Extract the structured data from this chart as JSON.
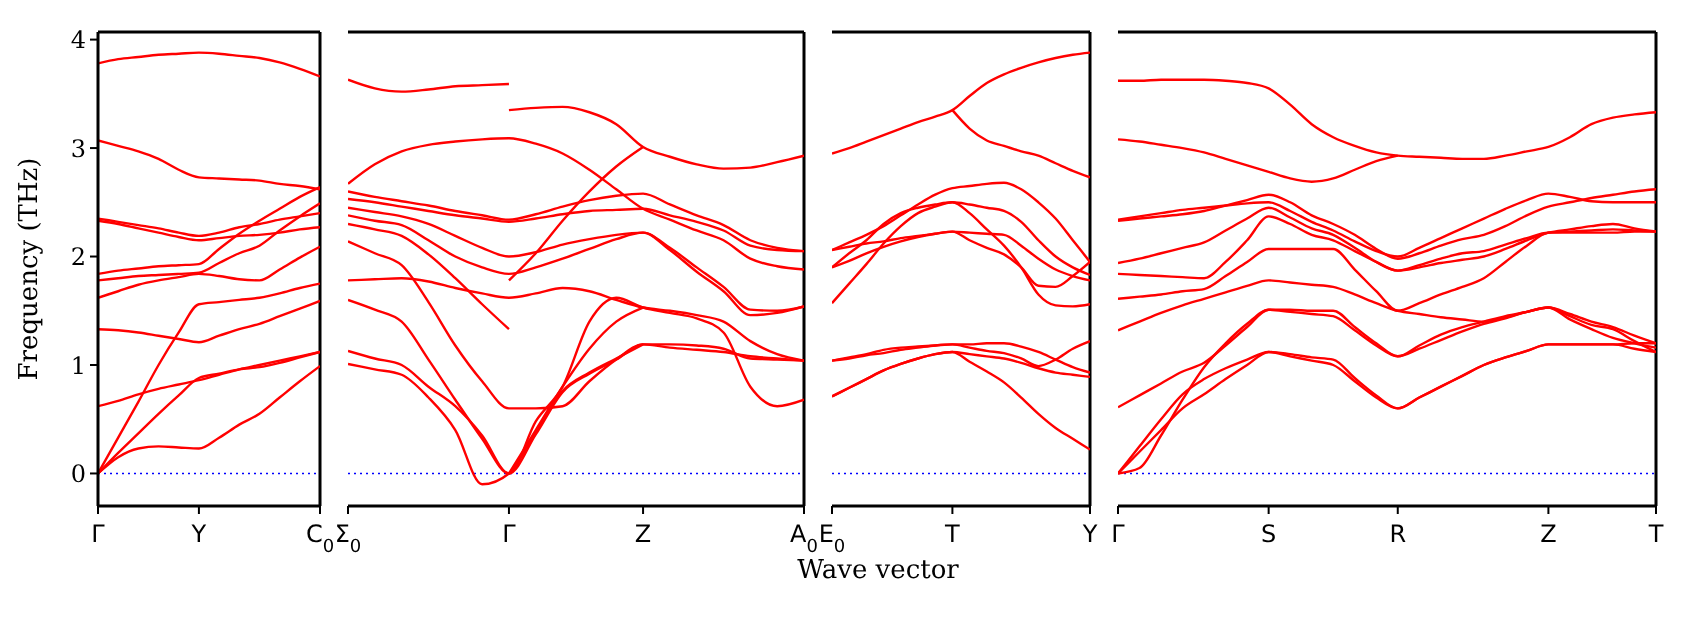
{
  "chart_data": [
    {
      "type": "line",
      "ylabel": "Frequency (THz)",
      "categories": [
        "Γ",
        null,
        null,
        null,
        null,
        "Y",
        null,
        null,
        null,
        null,
        null,
        "C$_{0}$"
      ],
      "ylim": [
        -0.3,
        4.07
      ],
      "yticks": [
        0,
        1,
        2,
        3,
        4
      ],
      "grid": false,
      "legend": false,
      "ref_lines": [
        {
          "axis": "y",
          "value": 0,
          "color": "#0000ff",
          "line_style": "dotted"
        }
      ],
      "series": [
        {
          "color": "#ff0000",
          "values": [
            3.78,
            3.82,
            3.84,
            3.86,
            3.87,
            3.88,
            3.87,
            3.85,
            3.83,
            3.79,
            3.73,
            3.66
          ]
        },
        {
          "color": "#ff0000",
          "values": [
            3.07,
            3.02,
            2.97,
            2.9,
            2.8,
            2.73,
            2.72,
            2.71,
            2.7,
            2.67,
            2.65,
            2.62
          ]
        },
        {
          "color": "#ff0000",
          "values": [
            2.35,
            2.32,
            2.29,
            2.26,
            2.22,
            2.19,
            2.22,
            2.27,
            2.3,
            2.34,
            2.37,
            2.4
          ]
        },
        {
          "color": "#ff0000",
          "values": [
            2.33,
            2.3,
            2.26,
            2.22,
            2.18,
            2.15,
            2.17,
            2.19,
            2.2,
            2.22,
            2.25,
            2.27
          ]
        },
        {
          "color": "#ff0000",
          "values": [
            1.84,
            1.87,
            1.89,
            1.91,
            1.92,
            1.93,
            2.07,
            2.21,
            2.33,
            2.44,
            2.55,
            2.64
          ]
        },
        {
          "color": "#ff0000",
          "values": [
            1.78,
            1.8,
            1.82,
            1.83,
            1.84,
            1.85,
            1.94,
            2.03,
            2.1,
            2.24,
            2.37,
            2.49
          ]
        },
        {
          "color": "#ff0000",
          "values": [
            1.62,
            1.68,
            1.74,
            1.78,
            1.81,
            1.84,
            1.82,
            1.79,
            1.78,
            1.88,
            1.99,
            2.09
          ]
        },
        {
          "color": "#ff0000",
          "values": [
            1.33,
            1.32,
            1.3,
            1.27,
            1.24,
            1.21,
            1.27,
            1.33,
            1.38,
            1.45,
            1.52,
            1.59
          ]
        },
        {
          "color": "#ff0000",
          "values": [
            0.62,
            0.67,
            0.73,
            0.78,
            0.82,
            0.86,
            0.91,
            0.96,
            1.0,
            1.04,
            1.08,
            1.12
          ]
        },
        {
          "color": "#ff0000",
          "values": [
            0,
            0.33,
            0.66,
            1.0,
            1.3,
            1.56,
            1.58,
            1.6,
            1.62,
            1.66,
            1.71,
            1.75
          ]
        },
        {
          "color": "#ff0000",
          "values": [
            0,
            0.19,
            0.37,
            0.55,
            0.72,
            0.88,
            0.92,
            0.96,
            0.98,
            1.02,
            1.07,
            1.12
          ]
        },
        {
          "color": "#ff0000",
          "values": [
            0,
            0.15,
            0.23,
            0.25,
            0.24,
            0.23,
            0.33,
            0.45,
            0.55,
            0.7,
            0.85,
            0.99
          ]
        }
      ]
    },
    {
      "type": "line",
      "xlabel": "Wave vector",
      "categories": [
        "Σ$_{0}$",
        null,
        null,
        null,
        null,
        null,
        "Γ",
        null,
        null,
        null,
        null,
        "Z",
        null,
        null,
        null,
        null,
        null,
        "A$_{0}$"
      ],
      "ylim": [
        -0.3,
        4.07
      ],
      "yticks": [
        0,
        1,
        2,
        3,
        4
      ],
      "tick_labels": "x",
      "grid": false,
      "legend": false,
      "ref_lines": [
        {
          "axis": "y",
          "value": 0,
          "color": "#0000ff",
          "line_style": "dotted"
        }
      ],
      "series": [
        {
          "color": "#ff0000",
          "values": [
            3.63,
            3.55,
            3.52,
            3.54,
            3.57,
            3.58,
            3.59,
            null,
            null,
            null,
            null,
            null,
            null,
            null,
            null,
            null,
            null,
            null
          ]
        },
        {
          "color": "#ff0000",
          "values": [
            null,
            null,
            null,
            null,
            null,
            null,
            3.35,
            3.37,
            3.38,
            3.33,
            3.22,
            3.01,
            2.92,
            2.85,
            2.81,
            2.82,
            2.87,
            2.93
          ]
        },
        {
          "color": "#ff0000",
          "values": [
            2.67,
            2.85,
            2.97,
            3.03,
            3.06,
            3.08,
            3.09,
            3.04,
            2.95,
            2.8,
            2.62,
            2.44,
            2.34,
            2.24,
            2.15,
            1.98,
            1.91,
            1.88
          ]
        },
        {
          "color": "#ff0000",
          "values": [
            2.6,
            2.55,
            2.51,
            2.47,
            2.42,
            2.38,
            2.34,
            2.39,
            2.46,
            2.52,
            2.56,
            2.58,
            2.48,
            2.38,
            2.29,
            2.15,
            2.08,
            2.05
          ]
        },
        {
          "color": "#ff0000",
          "values": [
            2.53,
            2.5,
            2.46,
            2.42,
            2.38,
            2.35,
            2.32,
            2.35,
            2.39,
            2.42,
            2.43,
            2.44,
            2.38,
            2.32,
            2.24,
            2.1,
            2.06,
            2.05
          ]
        },
        {
          "color": "#ff0000",
          "values": [
            2.45,
            2.41,
            2.37,
            2.3,
            2.19,
            2.08,
            2.0,
            2.04,
            2.11,
            2.16,
            2.2,
            2.22,
            2.06,
            1.86,
            1.68,
            1.46,
            1.48,
            1.54
          ]
        },
        {
          "color": "#ff0000",
          "values": [
            2.38,
            2.33,
            2.29,
            2.15,
            2.0,
            1.9,
            1.84,
            1.9,
            1.98,
            2.07,
            2.16,
            2.22,
            2.08,
            1.9,
            1.72,
            1.51,
            1.5,
            1.54
          ]
        },
        {
          "color": "#ff0000",
          "values": [
            null,
            null,
            null,
            null,
            null,
            null,
            1.78,
            2.03,
            2.33,
            2.6,
            2.83,
            3.01,
            null,
            null,
            null,
            null,
            null,
            null
          ]
        },
        {
          "color": "#ff0000",
          "values": [
            2.3,
            2.25,
            2.19,
            2.02,
            1.8,
            1.56,
            1.33,
            null,
            null,
            null,
            null,
            null,
            null,
            null,
            null,
            null,
            null,
            null
          ]
        },
        {
          "color": "#ff0000",
          "values": [
            1.78,
            1.79,
            1.8,
            1.77,
            1.71,
            1.66,
            1.62,
            1.66,
            1.71,
            1.68,
            1.6,
            1.53,
            1.5,
            1.46,
            1.4,
            1.22,
            1.1,
            1.04
          ]
        },
        {
          "color": "#ff0000",
          "values": [
            2.14,
            2.03,
            1.92,
            1.58,
            1.18,
            0.85,
            0.6,
            0.6,
            0.62,
            0.85,
            1.05,
            1.19,
            1.19,
            1.18,
            1.15,
            1.06,
            1.05,
            1.04
          ]
        },
        {
          "color": "#ff0000",
          "values": [
            1.6,
            1.51,
            1.4,
            1.05,
            0.68,
            0.32,
            0,
            0.48,
            0.8,
            1.4,
            1.62,
            1.53,
            1.48,
            1.43,
            1.3,
            0.8,
            0.62,
            0.68
          ]
        },
        {
          "color": "#ff0000",
          "values": [
            1.13,
            1.06,
            1.0,
            0.8,
            0.62,
            0.35,
            0,
            0.36,
            0.75,
            0.92,
            1.05,
            1.19,
            1.16,
            1.14,
            1.12,
            1.08,
            1.06,
            1.04
          ]
        },
        {
          "color": "#ff0000",
          "values": [
            1.01,
            0.96,
            0.91,
            0.7,
            0.4,
            -0.1,
            0,
            0.38,
            0.76,
            0.93,
            1.06,
            1.19,
            null,
            null,
            null,
            null,
            null,
            null
          ]
        },
        {
          "color": "#ff0000",
          "values": [
            null,
            null,
            null,
            null,
            null,
            null,
            0,
            0.4,
            0.8,
            1.15,
            1.4,
            1.53,
            null,
            null,
            null,
            null,
            null,
            null
          ]
        }
      ]
    },
    {
      "type": "line",
      "categories": [
        "E$_{0}$",
        null,
        null,
        null,
        null,
        null,
        null,
        "T",
        null,
        null,
        null,
        null,
        null,
        null,
        null,
        "Y"
      ],
      "ylim": [
        -0.3,
        4.07
      ],
      "yticks": [
        0,
        1,
        2,
        3,
        4
      ],
      "tick_labels": "x",
      "grid": false,
      "legend": false,
      "ref_lines": [
        {
          "axis": "y",
          "value": 0,
          "color": "#0000ff",
          "line_style": "dotted"
        }
      ],
      "series": [
        {
          "color": "#ff0000",
          "values": [
            2.95,
            3.0,
            3.06,
            3.12,
            3.18,
            3.24,
            3.29,
            3.35,
            3.48,
            3.6,
            3.68,
            3.74,
            3.79,
            3.83,
            3.86,
            3.88
          ]
        },
        {
          "color": "#ff0000",
          "values": [
            null,
            null,
            null,
            null,
            null,
            null,
            null,
            3.35,
            3.18,
            3.07,
            3.02,
            2.97,
            2.93,
            2.86,
            2.79,
            2.73
          ]
        },
        {
          "color": "#ff0000",
          "values": [
            2.06,
            2.13,
            2.2,
            2.28,
            2.38,
            2.48,
            2.57,
            2.63,
            2.65,
            2.67,
            2.68,
            2.62,
            2.5,
            2.35,
            2.15,
            1.95
          ]
        },
        {
          "color": "#ff0000",
          "values": [
            1.9,
            2.03,
            2.15,
            2.3,
            2.4,
            2.45,
            2.48,
            2.5,
            2.48,
            2.45,
            2.42,
            2.32,
            2.15,
            2.0,
            1.9,
            1.83
          ]
        },
        {
          "color": "#ff0000",
          "values": [
            1.57,
            1.75,
            1.93,
            2.12,
            2.28,
            2.4,
            2.46,
            2.5,
            2.4,
            2.25,
            2.1,
            1.9,
            1.65,
            1.55,
            1.54,
            1.56
          ]
        },
        {
          "color": "#ff0000",
          "values": [
            2.06,
            2.09,
            2.12,
            2.14,
            2.17,
            2.19,
            2.21,
            2.23,
            2.22,
            2.21,
            2.2,
            2.1,
            1.98,
            1.88,
            1.82,
            1.78
          ]
        },
        {
          "color": "#ff0000",
          "values": [
            1.9,
            1.96,
            2.03,
            2.09,
            2.14,
            2.18,
            2.21,
            2.23,
            2.15,
            2.08,
            2.02,
            1.9,
            1.73,
            1.72,
            1.82,
            1.95
          ]
        },
        {
          "color": "#ff0000",
          "values": [
            1.04,
            1.07,
            1.1,
            1.14,
            1.16,
            1.17,
            1.18,
            1.19,
            1.16,
            1.13,
            1.11,
            1.06,
            0.99,
            1.05,
            1.15,
            1.22
          ]
        },
        {
          "color": "#ff0000",
          "values": [
            1.04,
            1.06,
            1.09,
            1.11,
            1.14,
            1.16,
            1.18,
            1.19,
            1.19,
            1.2,
            1.2,
            1.17,
            1.12,
            1.05,
            0.98,
            0.93
          ]
        },
        {
          "color": "#ff0000",
          "values": [
            0.71,
            0.79,
            0.87,
            0.95,
            1.01,
            1.06,
            1.1,
            1.12,
            1.1,
            1.08,
            1.06,
            1.02,
            0.97,
            0.93,
            0.91,
            0.89
          ]
        },
        {
          "color": "#ff0000",
          "values": [
            0.71,
            0.79,
            0.87,
            0.95,
            1.01,
            1.06,
            1.1,
            1.12,
            1.03,
            0.94,
            0.84,
            0.7,
            0.55,
            0.42,
            0.32,
            0.22
          ]
        }
      ]
    },
    {
      "type": "line",
      "categories": [
        "Γ",
        null,
        null,
        null,
        null,
        null,
        null,
        "S",
        null,
        null,
        null,
        null,
        null,
        "R",
        null,
        null,
        null,
        null,
        null,
        null,
        "Z",
        null,
        null,
        null,
        null,
        "T"
      ],
      "ylim": [
        -0.3,
        4.07
      ],
      "yticks": [
        0,
        1,
        2,
        3,
        4
      ],
      "tick_labels": "x",
      "grid": false,
      "legend": false,
      "ref_lines": [
        {
          "axis": "y",
          "value": 0,
          "color": "#0000ff",
          "line_style": "dotted"
        }
      ],
      "series": [
        {
          "color": "#ff0000",
          "values": [
            3.62,
            3.62,
            3.63,
            3.63,
            3.63,
            3.62,
            3.6,
            3.55,
            3.4,
            3.22,
            3.1,
            3.02,
            2.96,
            2.93,
            2.92,
            2.91,
            2.9,
            2.9,
            2.93,
            2.97,
            3.01,
            3.1,
            3.22,
            3.28,
            3.31,
            3.33
          ]
        },
        {
          "color": "#ff0000",
          "values": [
            3.08,
            3.06,
            3.03,
            3.0,
            2.96,
            2.9,
            2.84,
            2.78,
            2.72,
            2.69,
            2.72,
            2.8,
            2.88,
            2.93,
            null,
            null,
            null,
            null,
            null,
            null,
            null,
            null,
            null,
            null,
            null,
            null
          ]
        },
        {
          "color": "#ff0000",
          "values": [
            2.34,
            2.37,
            2.4,
            2.43,
            2.45,
            2.47,
            2.49,
            2.5,
            2.42,
            2.32,
            2.24,
            2.14,
            2.05,
            2.0,
            2.08,
            2.17,
            2.26,
            2.35,
            2.44,
            2.52,
            2.58,
            2.55,
            2.51,
            2.5,
            2.5,
            2.5
          ]
        },
        {
          "color": "#ff0000",
          "values": [
            2.33,
            2.35,
            2.37,
            2.39,
            2.42,
            2.47,
            2.52,
            2.57,
            2.5,
            2.38,
            2.3,
            2.2,
            2.07,
            1.98,
            2.03,
            2.1,
            2.16,
            2.2,
            2.28,
            2.38,
            2.46,
            2.5,
            2.54,
            2.57,
            2.6,
            2.62
          ]
        },
        {
          "color": "#ff0000",
          "values": [
            1.94,
            1.98,
            2.03,
            2.08,
            2.13,
            2.24,
            2.35,
            2.45,
            2.36,
            2.26,
            2.2,
            2.08,
            1.95,
            1.87,
            1.92,
            1.98,
            2.03,
            2.05,
            2.11,
            2.17,
            2.22,
            2.22,
            2.22,
            2.22,
            2.23,
            2.23
          ]
        },
        {
          "color": "#ff0000",
          "values": [
            1.84,
            1.83,
            1.82,
            1.81,
            1.8,
            1.95,
            2.15,
            2.37,
            2.3,
            2.2,
            2.15,
            2.05,
            1.95,
            1.87,
            1.9,
            1.94,
            1.97,
            2.0,
            2.07,
            2.15,
            2.22,
            2.25,
            2.28,
            2.3,
            2.26,
            2.23
          ]
        },
        {
          "color": "#ff0000",
          "values": [
            1.61,
            1.63,
            1.65,
            1.68,
            1.7,
            1.82,
            1.95,
            2.07,
            2.07,
            2.07,
            2.07,
            1.88,
            1.68,
            1.5,
            1.57,
            1.65,
            1.72,
            1.8,
            1.95,
            2.1,
            2.22,
            2.23,
            2.24,
            2.25,
            2.24,
            2.23
          ]
        },
        {
          "color": "#ff0000",
          "values": [
            1.32,
            1.4,
            1.48,
            1.55,
            1.61,
            1.67,
            1.73,
            1.78,
            1.76,
            1.74,
            1.72,
            1.65,
            1.57,
            1.5,
            1.47,
            1.44,
            1.42,
            1.4,
            1.44,
            1.49,
            1.53,
            1.45,
            1.37,
            1.33,
            1.22,
            1.12
          ]
        },
        {
          "color": "#ff0000",
          "values": [
            0.61,
            0.72,
            0.83,
            0.94,
            1.02,
            1.18,
            1.35,
            1.51,
            1.49,
            1.47,
            1.45,
            1.32,
            1.18,
            1.08,
            1.15,
            1.23,
            1.31,
            1.38,
            1.43,
            1.49,
            1.53,
            1.47,
            1.4,
            1.35,
            1.27,
            1.2
          ]
        },
        {
          "color": "#ff0000",
          "values": [
            0,
            0.25,
            0.5,
            0.73,
            0.87,
            0.97,
            1.05,
            1.12,
            1.08,
            1.04,
            1.0,
            0.85,
            0.7,
            0.6,
            0.7,
            0.8,
            0.9,
            1.0,
            1.07,
            1.13,
            1.19,
            1.19,
            1.19,
            1.19,
            1.2,
            1.2
          ]
        },
        {
          "color": "#ff0000",
          "values": [
            0,
            0.2,
            0.4,
            0.6,
            0.73,
            0.87,
            1.0,
            1.12,
            1.1,
            1.07,
            1.05,
            0.88,
            0.72,
            0.6,
            0.7,
            0.8,
            0.9,
            1.0,
            1.07,
            1.13,
            1.19,
            1.19,
            1.19,
            1.19,
            1.15,
            1.12
          ]
        },
        {
          "color": "#ff0000",
          "values": [
            0,
            0.05,
            0.35,
            0.68,
            0.98,
            1.2,
            1.38,
            1.51,
            1.51,
            1.5,
            1.5,
            1.35,
            1.2,
            1.08,
            1.18,
            1.28,
            1.35,
            1.4,
            1.45,
            1.49,
            1.53,
            1.42,
            1.33,
            1.25,
            1.2,
            1.16
          ]
        }
      ]
    }
  ]
}
